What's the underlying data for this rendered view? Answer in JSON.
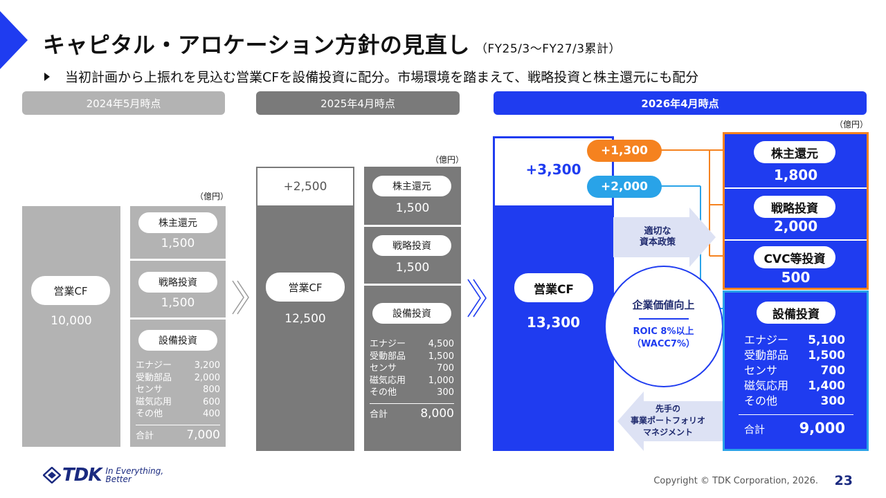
{
  "title": "キャピタル・アロケーション方針の見直し",
  "title_sub": "（FY25/3〜FY27/3累計）",
  "bullet": "当初計画から上振れを見込む営業CFを設備投資に配分。市場環境を踏まえて、戦略投資と株主還元にも配分",
  "unit": "（億円）",
  "col1": {
    "header": "2024年5月時点",
    "cf_label": "営業CF",
    "cf_value": "10,000",
    "shareholder_label": "株主還元",
    "shareholder_value": "1,500",
    "strategic_label": "戦略投資",
    "strategic_value": "1,500",
    "capex_label": "設備投資",
    "breakdown": [
      {
        "name": "エナジー",
        "value": "3,200"
      },
      {
        "name": "受動部品",
        "value": "2,000"
      },
      {
        "name": "センサ",
        "value": "800"
      },
      {
        "name": "磁気応用",
        "value": "600"
      },
      {
        "name": "その他",
        "value": "400"
      }
    ],
    "total_label": "合計",
    "total_value": "7,000"
  },
  "col2": {
    "header": "2025年4月時点",
    "plus_value": "+2,500",
    "cf_label": "営業CF",
    "cf_value": "12,500",
    "shareholder_label": "株主還元",
    "shareholder_value": "1,500",
    "strategic_label": "戦略投資",
    "strategic_value": "1,500",
    "capex_label": "設備投資",
    "breakdown": [
      {
        "name": "エナジー",
        "value": "4,500"
      },
      {
        "name": "受動部品",
        "value": "1,500"
      },
      {
        "name": "センサ",
        "value": "700"
      },
      {
        "name": "磁気応用",
        "value": "1,000"
      },
      {
        "name": "その他",
        "value": "300"
      }
    ],
    "total_label": "合計",
    "total_value": "8,000"
  },
  "col3": {
    "header": "2026年4月時点",
    "plus_value": "+3,300",
    "cf_label": "営業CF",
    "cf_value": "13,300",
    "badge_orange": "+1,300",
    "badge_cyan": "+2,000",
    "arrow_right_text": "適切な\n資本政策",
    "circle_title": "企業価値向上",
    "circle_sub": "ROIC 8%以上\n（WACC7%）",
    "arrow_left_text": "先手の\n事業ポートフォリオ\nマネジメント",
    "shareholder_label": "株主還元",
    "shareholder_value": "1,800",
    "strategic_label": "戦略投資",
    "strategic_value": "2,000",
    "cvc_label": "CVC等投資",
    "cvc_value": "500",
    "capex_label": "設備投資",
    "breakdown": [
      {
        "name": "エナジー",
        "value": "5,100"
      },
      {
        "name": "受動部品",
        "value": "1,500"
      },
      {
        "name": "センサ",
        "value": "700"
      },
      {
        "name": "磁気応用",
        "value": "1,400"
      },
      {
        "name": "その他",
        "value": "300"
      }
    ],
    "total_label": "合計",
    "total_value": "9,000"
  },
  "logo": {
    "brand": "TDK",
    "tagline_1": "In Everything,",
    "tagline_2": "Better"
  },
  "footer": {
    "copyright": "Copyright  © TDK Corporation, 2026.",
    "page": "23"
  },
  "colors": {
    "blue": "#1f3cf0",
    "gray_light": "#b3b3b3",
    "gray_dark": "#7a7a7a",
    "orange": "#f5821f",
    "cyan": "#29a3e8"
  }
}
